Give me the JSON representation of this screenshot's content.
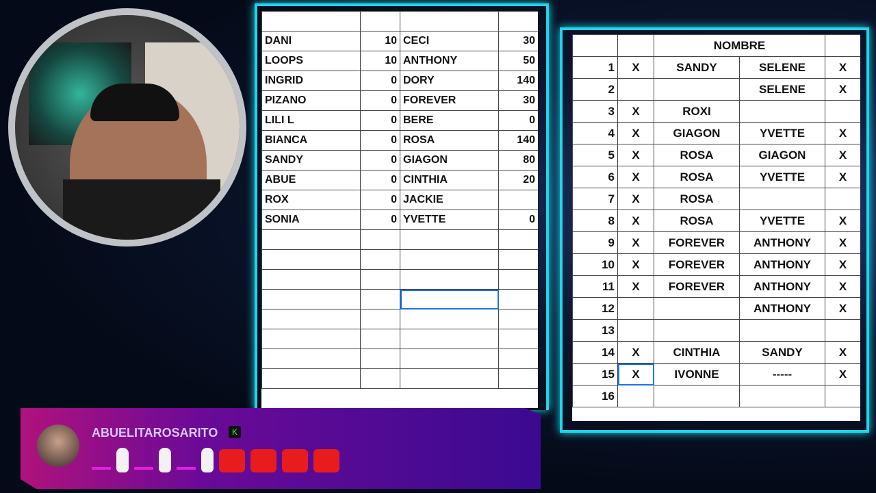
{
  "left_sheet": {
    "rows": [
      [
        "DANI",
        "10",
        "CECI",
        "30"
      ],
      [
        "LOOPS",
        "10",
        "ANTHONY",
        "50"
      ],
      [
        "INGRID",
        "0",
        "DORY",
        "140"
      ],
      [
        "PIZANO",
        "0",
        "FOREVER",
        "30"
      ],
      [
        "LILI L",
        "0",
        "BERE",
        "0"
      ],
      [
        "BIANCA",
        "0",
        "ROSA",
        "140"
      ],
      [
        "SANDY",
        "0",
        "GIAGON",
        "80"
      ],
      [
        "ABUE",
        "0",
        "CINTHIA",
        "20"
      ],
      [
        "ROX",
        "0",
        "JACKIE",
        ""
      ],
      [
        "SONIA",
        "0",
        "YVETTE",
        "0"
      ],
      [
        "",
        "",
        "",
        ""
      ],
      [
        "",
        "",
        "",
        ""
      ],
      [
        "",
        "",
        "",
        ""
      ],
      [
        "",
        "",
        "",
        ""
      ],
      [
        "",
        "",
        "",
        ""
      ],
      [
        "",
        "",
        "",
        ""
      ],
      [
        "",
        "",
        "",
        ""
      ],
      [
        "",
        "",
        "",
        ""
      ]
    ]
  },
  "right_sheet": {
    "header": "NOMBRE",
    "rows": [
      [
        "1",
        "X",
        "SANDY",
        "SELENE",
        "X"
      ],
      [
        "2",
        "",
        "",
        "SELENE",
        "X"
      ],
      [
        "3",
        "X",
        "ROXI",
        "",
        ""
      ],
      [
        "4",
        "X",
        "GIAGON",
        "YVETTE",
        "X"
      ],
      [
        "5",
        "X",
        "ROSA",
        "GIAGON",
        "X"
      ],
      [
        "6",
        "X",
        "ROSA",
        "YVETTE",
        "X"
      ],
      [
        "7",
        "X",
        "ROSA",
        "",
        ""
      ],
      [
        "8",
        "X",
        "ROSA",
        "YVETTE",
        "X"
      ],
      [
        "9",
        "X",
        "FOREVER",
        "ANTHONY",
        "X"
      ],
      [
        "10",
        "X",
        "FOREVER",
        "ANTHONY",
        "X"
      ],
      [
        "11",
        "X",
        "FOREVER",
        "ANTHONY",
        "X"
      ],
      [
        "12",
        "",
        "",
        "ANTHONY",
        "X"
      ],
      [
        "13",
        "",
        "",
        "",
        ""
      ],
      [
        "14",
        "X",
        "CINTHIA",
        "SANDY",
        "X"
      ],
      [
        "15",
        "X",
        "IVONNE",
        "-----",
        "X"
      ],
      [
        "16",
        "",
        "",
        "",
        ""
      ]
    ]
  },
  "chat": {
    "username": "ABUELITAROSARITO",
    "badge": "K"
  }
}
